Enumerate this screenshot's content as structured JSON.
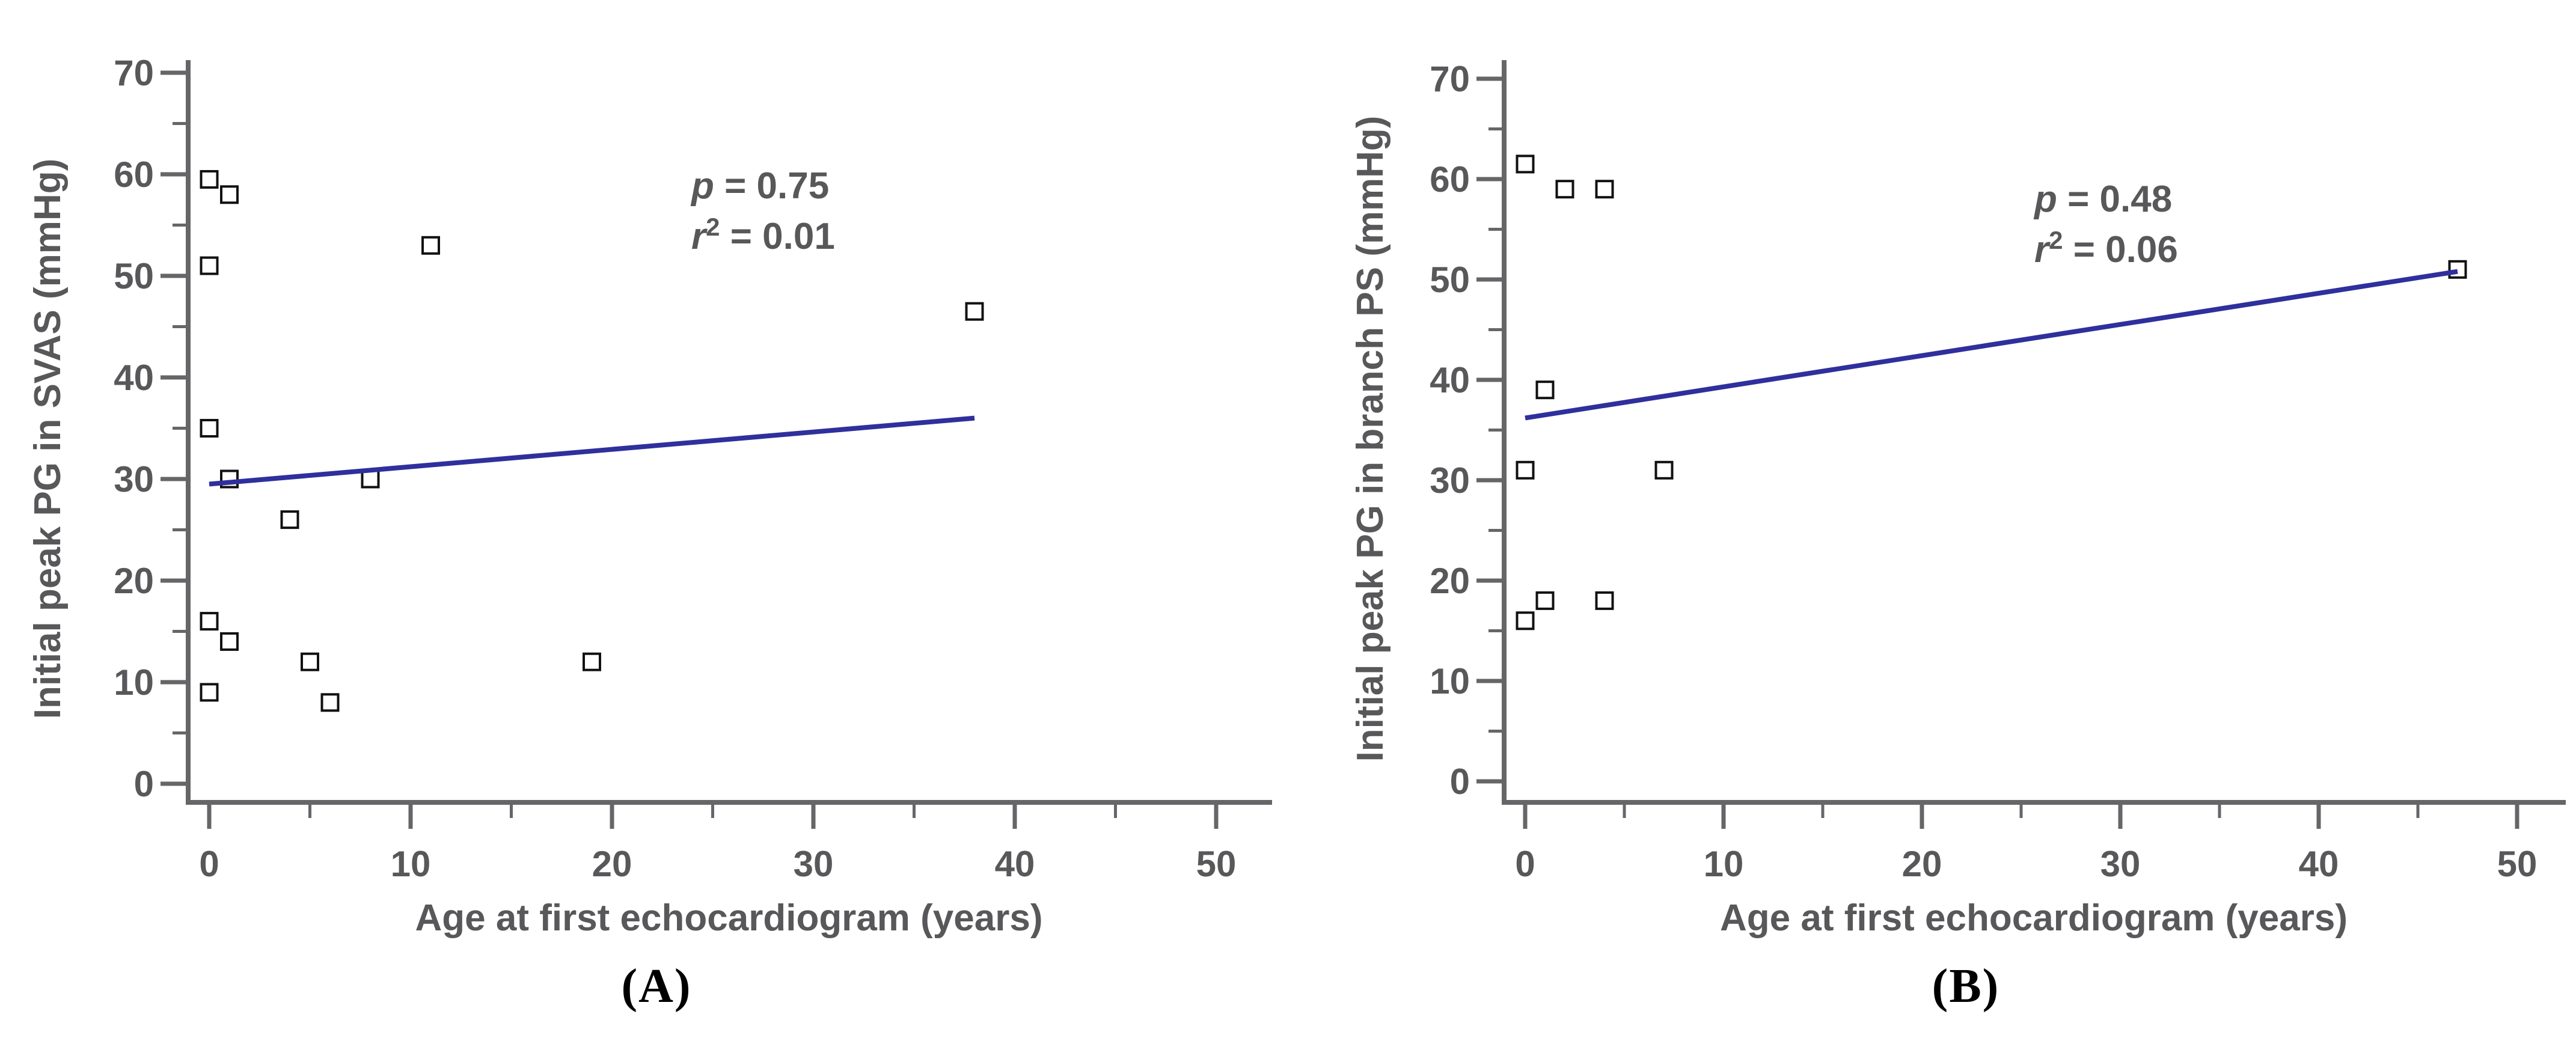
{
  "styles": {
    "background": "#ffffff",
    "text_color": "#58585a",
    "axis_color": "#666668",
    "marker_color": "#111111",
    "trend_color": "#2f2f9d",
    "caption_color": "#000000"
  },
  "chart_data": [
    {
      "id": "A",
      "type": "scatter",
      "caption": "(A)",
      "xlabel": "Age at first echocardiogram (years)",
      "ylabel": "Initial peak PG in SVAS (mmHg)",
      "xlim": [
        0,
        52
      ],
      "ylim": [
        0,
        73
      ],
      "x_major_ticks": [
        0,
        10,
        20,
        30,
        40,
        50
      ],
      "x_minor_ticks": [
        5,
        15,
        25,
        35,
        45
      ],
      "y_major_ticks": [
        0,
        10,
        20,
        30,
        40,
        50,
        60,
        70
      ],
      "y_minor_ticks": [
        5,
        15,
        25,
        35,
        45,
        55,
        65
      ],
      "grid": false,
      "legend": null,
      "marker": "open-square",
      "points": [
        [
          0,
          59.5
        ],
        [
          1,
          58
        ],
        [
          0,
          51
        ],
        [
          11,
          53
        ],
        [
          38,
          46.5
        ],
        [
          0,
          35
        ],
        [
          1,
          30
        ],
        [
          8,
          30
        ],
        [
          4,
          26
        ],
        [
          0,
          16
        ],
        [
          1,
          14
        ],
        [
          5,
          12
        ],
        [
          0,
          9
        ],
        [
          6,
          8
        ],
        [
          19,
          12
        ]
      ],
      "regression_line": {
        "x": [
          0,
          38
        ],
        "y": [
          29.5,
          36
        ]
      },
      "annotation": {
        "line1_italic": "p",
        "line1_rest": " = 0.75",
        "line2_italic": "r",
        "line2_sup": "2",
        "line2_rest": " = 0.01"
      }
    },
    {
      "id": "B",
      "type": "scatter",
      "caption": "(B)",
      "xlabel": "Age at first echocardiogram (years)",
      "ylabel": "Initial peak PG in branch PS (mmHg)",
      "xlim": [
        0,
        52
      ],
      "ylim": [
        0,
        73
      ],
      "x_major_ticks": [
        0,
        10,
        20,
        30,
        40,
        50
      ],
      "x_minor_ticks": [
        5,
        15,
        25,
        35,
        45
      ],
      "y_major_ticks": [
        0,
        10,
        20,
        30,
        40,
        50,
        60,
        70
      ],
      "y_minor_ticks": [
        5,
        15,
        25,
        35,
        45,
        55,
        65
      ],
      "grid": false,
      "legend": null,
      "marker": "open-square",
      "points": [
        [
          0,
          61.5
        ],
        [
          2,
          59
        ],
        [
          4,
          59
        ],
        [
          1,
          39
        ],
        [
          0,
          31
        ],
        [
          7,
          31
        ],
        [
          0,
          16
        ],
        [
          1,
          18
        ],
        [
          4,
          18
        ],
        [
          47,
          51
        ]
      ],
      "regression_line": {
        "x": [
          0,
          47
        ],
        "y": [
          36.2,
          50.8
        ]
      },
      "annotation": {
        "line1_italic": "p",
        "line1_rest": " = 0.48",
        "line2_italic": "r",
        "line2_sup": "2",
        "line2_rest": " = 0.06"
      }
    }
  ]
}
